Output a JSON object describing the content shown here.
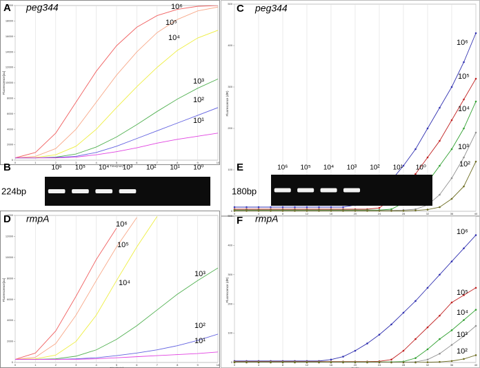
{
  "chart_data": [
    {
      "type": "line",
      "panel": "A",
      "title": "peg344",
      "xlabel": "Time[min]",
      "ylabel": "Fluorescence[au]",
      "x": [
        0,
        1,
        2,
        3,
        4,
        5,
        6,
        7,
        8,
        9,
        10
      ],
      "xlim": [
        0,
        10
      ],
      "xticks": [
        0,
        1,
        2,
        3,
        4,
        5,
        6,
        7,
        8,
        9,
        10
      ],
      "ylim": [
        0,
        20000
      ],
      "yticks": [
        0,
        2000,
        4000,
        6000,
        8000,
        10000,
        12000,
        14000,
        16000,
        18000,
        20000
      ],
      "grid": true,
      "markers": false,
      "series": [
        {
          "name": "10⁶",
          "color": "#f06060",
          "values": [
            300,
            1000,
            3500,
            7500,
            11500,
            14800,
            17200,
            18700,
            19500,
            19900,
            20000
          ]
        },
        {
          "name": "10⁵",
          "color": "#f8a888",
          "values": [
            300,
            500,
            1500,
            4000,
            7500,
            11000,
            14000,
            16500,
            18200,
            19300,
            19800
          ]
        },
        {
          "name": "10⁴",
          "color": "#eeee40",
          "values": [
            300,
            350,
            700,
            1800,
            4000,
            6800,
            9500,
            12000,
            14200,
            15800,
            16800
          ]
        },
        {
          "name": "10³",
          "color": "#50b050",
          "values": [
            300,
            300,
            400,
            800,
            1700,
            3000,
            4600,
            6300,
            7900,
            9300,
            10500
          ]
        },
        {
          "name": "10²",
          "color": "#6060e0",
          "values": [
            300,
            300,
            350,
            500,
            1000,
            1800,
            2800,
            3800,
            4800,
            5800,
            6800
          ]
        },
        {
          "name": "10¹",
          "color": "#e040e0",
          "values": [
            300,
            300,
            300,
            400,
            700,
            1100,
            1600,
            2200,
            2700,
            3100,
            3500
          ]
        }
      ]
    },
    {
      "type": "line",
      "panel": "C",
      "title": "peg344",
      "xlabel": "Cycle",
      "ylabel": "Fluorescence (dR)",
      "x": [
        0,
        2,
        4,
        6,
        8,
        10,
        12,
        14,
        16,
        18,
        20,
        22,
        24,
        26,
        28,
        30,
        32,
        34,
        36,
        38,
        40
      ],
      "xlim": [
        0,
        40
      ],
      "xticks": [
        0,
        4,
        8,
        12,
        16,
        20,
        24,
        28,
        32,
        36,
        40
      ],
      "ylim": [
        0,
        500
      ],
      "yticks": [
        0,
        100,
        200,
        300,
        400,
        500
      ],
      "grid": true,
      "markers": true,
      "series": [
        {
          "name": "10⁶",
          "color": "#3030b0",
          "values": [
            10,
            10,
            10,
            10,
            10,
            10,
            10,
            10,
            10,
            10,
            15,
            25,
            45,
            75,
            110,
            150,
            200,
            250,
            300,
            360,
            430
          ]
        },
        {
          "name": "10⁵",
          "color": "#c02020",
          "values": [
            5,
            5,
            5,
            5,
            5,
            5,
            5,
            5,
            5,
            5,
            5,
            5,
            8,
            30,
            60,
            90,
            130,
            170,
            220,
            270,
            320
          ]
        },
        {
          "name": "10⁴",
          "color": "#30a030",
          "values": [
            3,
            3,
            3,
            3,
            3,
            3,
            3,
            3,
            3,
            3,
            3,
            3,
            3,
            5,
            20,
            40,
            70,
            110,
            150,
            200,
            265
          ]
        },
        {
          "name": "10³",
          "color": "#909090",
          "values": [
            2,
            2,
            2,
            2,
            2,
            2,
            2,
            2,
            2,
            2,
            2,
            2,
            2,
            2,
            3,
            5,
            15,
            40,
            80,
            130,
            190
          ]
        },
        {
          "name": "10²",
          "color": "#6b6b20",
          "values": [
            1,
            1,
            1,
            1,
            1,
            1,
            1,
            1,
            1,
            1,
            1,
            1,
            1,
            1,
            1,
            2,
            4,
            10,
            30,
            60,
            120
          ]
        }
      ]
    },
    {
      "type": "line",
      "panel": "D",
      "title": "rmpA",
      "xlabel": "Time[min]",
      "ylabel": "Fluorescence[au]",
      "x": [
        0,
        1,
        2,
        3,
        4,
        5,
        6,
        7,
        8,
        9,
        10
      ],
      "xlim": [
        0,
        10
      ],
      "xticks": [
        0,
        1,
        2,
        3,
        4,
        5,
        6,
        7,
        8,
        9,
        10
      ],
      "ylim": [
        0,
        14000
      ],
      "yticks": [
        0,
        2000,
        4000,
        6000,
        8000,
        10000,
        12000,
        14000
      ],
      "grid": true,
      "markers": false,
      "series": [
        {
          "name": "10⁶",
          "color": "#f06060",
          "values": [
            300,
            900,
            3000,
            6300,
            9800,
            12800,
            null,
            null,
            null,
            null,
            null
          ]
        },
        {
          "name": "10⁵",
          "color": "#f8a888",
          "values": [
            300,
            500,
            1800,
            4500,
            7800,
            11000,
            13800,
            null,
            null,
            null,
            null
          ]
        },
        {
          "name": "10⁴",
          "color": "#eeee40",
          "values": [
            300,
            350,
            700,
            2000,
            4500,
            7800,
            11000,
            13900,
            null,
            null,
            null
          ]
        },
        {
          "name": "10³",
          "color": "#50b050",
          "values": [
            300,
            300,
            350,
            600,
            1200,
            2200,
            3500,
            5000,
            6500,
            7800,
            9000
          ]
        },
        {
          "name": "10²",
          "color": "#6060e0",
          "values": [
            300,
            300,
            300,
            350,
            450,
            650,
            900,
            1200,
            1600,
            2100,
            2700
          ]
        },
        {
          "name": "10¹",
          "color": "#e040e0",
          "values": [
            300,
            300,
            300,
            300,
            350,
            450,
            550,
            650,
            750,
            850,
            1000
          ]
        }
      ]
    },
    {
      "type": "line",
      "panel": "F",
      "title": "rmpA",
      "xlabel": "Cycle",
      "ylabel": "Fluorescence (dR)",
      "x": [
        0,
        2,
        4,
        6,
        8,
        10,
        12,
        14,
        16,
        18,
        20,
        22,
        24,
        26,
        28,
        30,
        32,
        34,
        36,
        38,
        40
      ],
      "xlim": [
        0,
        40
      ],
      "xticks": [
        0,
        4,
        8,
        12,
        16,
        20,
        24,
        28,
        32,
        36,
        40
      ],
      "ylim": [
        0,
        500
      ],
      "yticks": [
        0,
        100,
        200,
        300,
        400,
        500
      ],
      "grid": true,
      "markers": true,
      "series": [
        {
          "name": "10⁶",
          "color": "#3030b0",
          "values": [
            5,
            5,
            5,
            5,
            5,
            5,
            5,
            5,
            10,
            20,
            40,
            65,
            95,
            130,
            170,
            210,
            255,
            300,
            345,
            390,
            435
          ]
        },
        {
          "name": "10⁵",
          "color": "#c02020",
          "values": [
            3,
            3,
            3,
            3,
            3,
            3,
            3,
            3,
            3,
            3,
            3,
            3,
            4,
            10,
            40,
            80,
            120,
            160,
            205,
            230,
            255
          ]
        },
        {
          "name": "10⁴",
          "color": "#30a030",
          "values": [
            2,
            2,
            2,
            2,
            2,
            2,
            2,
            2,
            2,
            2,
            2,
            2,
            2,
            2,
            3,
            15,
            45,
            80,
            110,
            145,
            180
          ]
        },
        {
          "name": "10³",
          "color": "#909090",
          "values": [
            1,
            1,
            1,
            1,
            1,
            1,
            1,
            1,
            1,
            1,
            1,
            1,
            1,
            1,
            1,
            2,
            10,
            30,
            60,
            90,
            125
          ]
        },
        {
          "name": "10²",
          "color": "#6b6b20",
          "values": [
            0,
            0,
            0,
            0,
            0,
            0,
            0,
            0,
            0,
            0,
            0,
            0,
            0,
            0,
            0,
            0,
            1,
            2,
            5,
            12,
            25
          ]
        }
      ]
    }
  ],
  "gels": [
    {
      "panel": "B",
      "size": "224bp",
      "lanes": [
        "10⁶",
        "10⁵",
        "10⁴",
        "10³",
        "10²",
        "10¹",
        "10⁰"
      ],
      "bands": [
        true,
        true,
        true,
        true,
        false,
        false,
        false
      ]
    },
    {
      "panel": "E",
      "size": "180bp",
      "lanes": [
        "10⁶",
        "10⁵",
        "10⁴",
        "10³",
        "10²",
        "10¹",
        "10⁰"
      ],
      "bands": [
        true,
        true,
        true,
        true,
        false,
        false,
        false
      ]
    }
  ]
}
